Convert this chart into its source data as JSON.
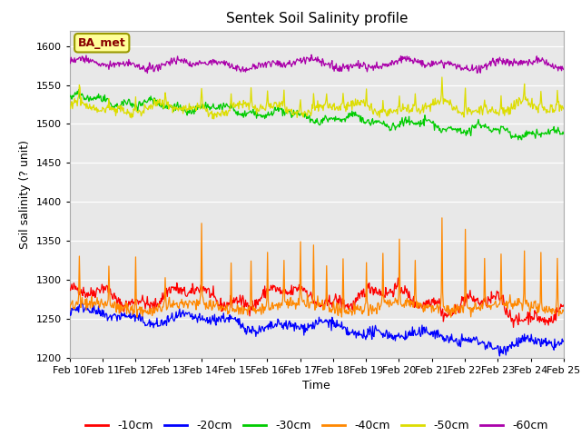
{
  "title": "Sentek Soil Salinity profile",
  "xlabel": "Time",
  "ylabel": "Soil salinity (? unit)",
  "ylim": [
    1200,
    1620
  ],
  "yticks": [
    1200,
    1250,
    1300,
    1350,
    1400,
    1450,
    1500,
    1550,
    1600
  ],
  "legend_labels": [
    "-10cm",
    "-20cm",
    "-30cm",
    "-40cm",
    "-50cm",
    "-60cm"
  ],
  "line_colors": [
    "#ff0000",
    "#0000ff",
    "#00cc00",
    "#ff8800",
    "#dddd00",
    "#aa00aa"
  ],
  "background_color": "#e8e8e8",
  "plot_bg_color": "#e8e8e8",
  "annotation_text": "BA_met",
  "annotation_bbox_facecolor": "#ffff99",
  "annotation_bbox_edgecolor": "#999900",
  "figsize": [
    6.4,
    4.8
  ],
  "dpi": 100
}
